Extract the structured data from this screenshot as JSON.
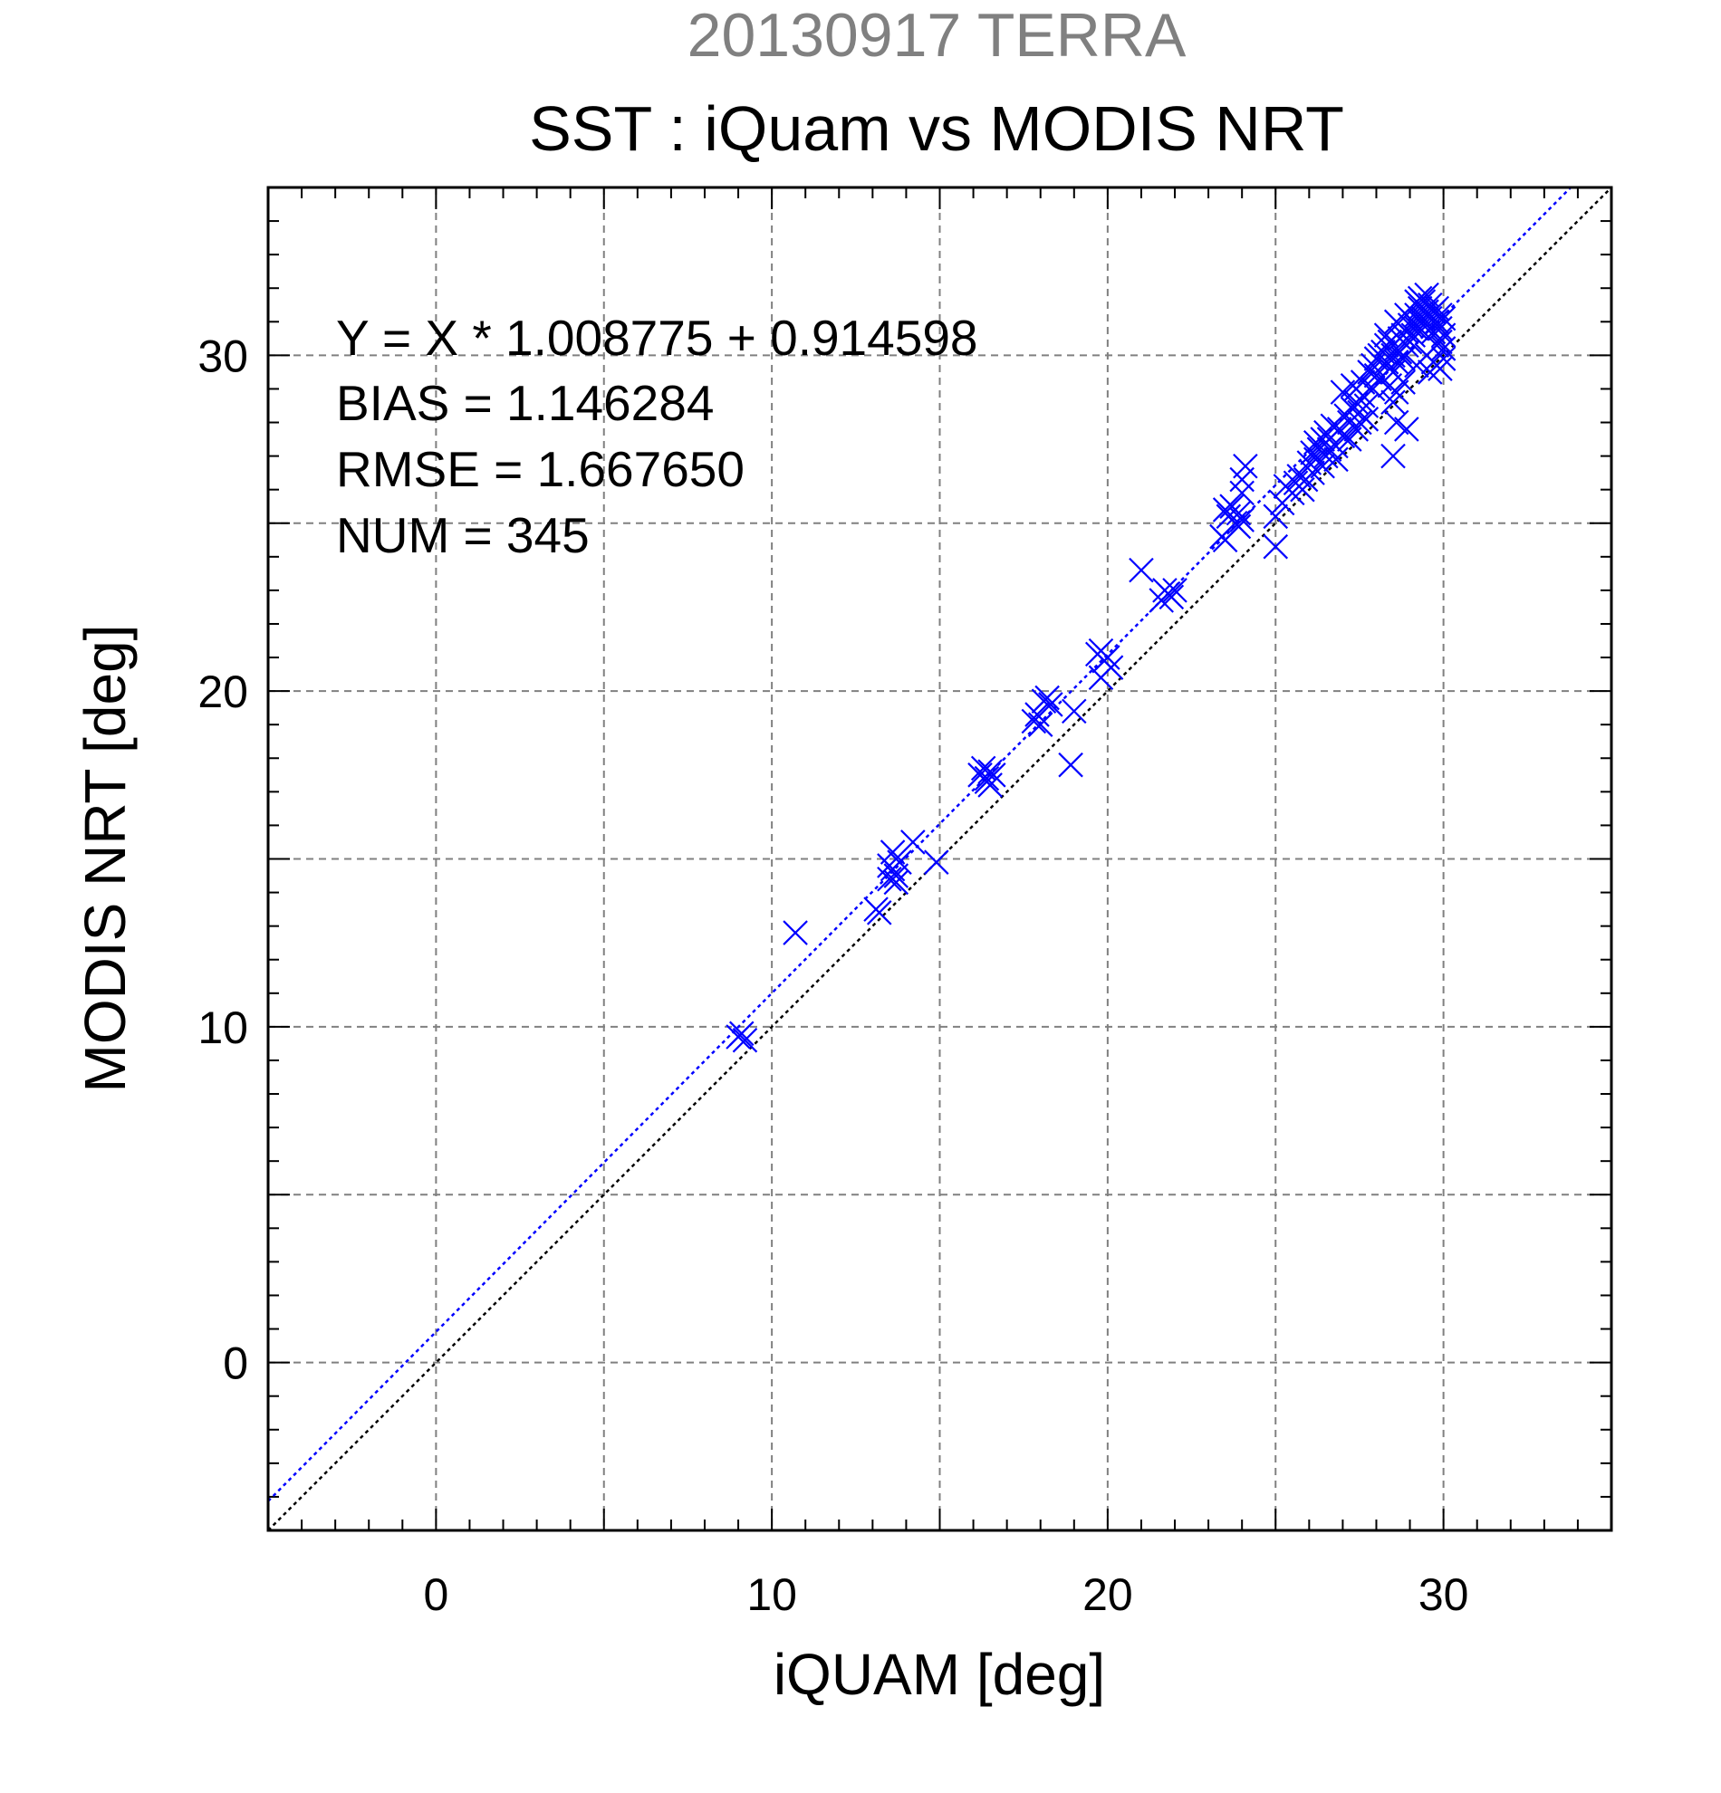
{
  "chart_data": {
    "type": "scatter",
    "subtitle": "20130917 TERRA",
    "title": "SST : iQuam vs MODIS NRT",
    "xlabel": "iQUAM [deg]",
    "ylabel": "MODIS NRT [deg]",
    "xlim": [
      -5,
      35
    ],
    "ylim": [
      -5,
      35
    ],
    "xticks": [
      0,
      10,
      20,
      30
    ],
    "yticks": [
      0,
      10,
      20,
      30
    ],
    "minor_step": 1,
    "grid": true,
    "grid_step": 5,
    "annotations": [
      "Y = X * 1.008775 + 0.914598",
      "BIAS = 1.146284",
      "RMSE = 1.667650",
      "NUM = 345"
    ],
    "fit_line": {
      "slope": 1.008775,
      "intercept": 0.914598,
      "color": "#0000ff",
      "style": "dotted"
    },
    "identity_line": {
      "slope": 1,
      "intercept": 0,
      "color": "#000000",
      "style": "dotted"
    },
    "series": [
      {
        "marker": "x",
        "color": "#0000ff",
        "points": [
          [
            9.1,
            9.8
          ],
          [
            9.2,
            9.6
          ],
          [
            9.0,
            9.7
          ],
          [
            10.7,
            12.8
          ],
          [
            13.1,
            13.5
          ],
          [
            13.2,
            13.4
          ],
          [
            13.5,
            14.4
          ],
          [
            13.6,
            14.7
          ],
          [
            13.7,
            14.5
          ],
          [
            13.6,
            15.2
          ],
          [
            13.8,
            14.9
          ],
          [
            13.5,
            14.8
          ],
          [
            13.7,
            14.3
          ],
          [
            14.2,
            15.5
          ],
          [
            14.9,
            14.9
          ],
          [
            16.2,
            17.5
          ],
          [
            16.3,
            17.7
          ],
          [
            16.4,
            17.3
          ],
          [
            16.5,
            17.6
          ],
          [
            16.4,
            17.4
          ],
          [
            16.6,
            17.5
          ],
          [
            16.5,
            17.2
          ],
          [
            17.8,
            19.1
          ],
          [
            17.9,
            19.3
          ],
          [
            18.0,
            19.0
          ],
          [
            18.1,
            19.7
          ],
          [
            18.2,
            19.8
          ],
          [
            18.3,
            19.6
          ],
          [
            18.9,
            17.8
          ],
          [
            19.0,
            19.4
          ],
          [
            19.7,
            21.1
          ],
          [
            19.8,
            21.2
          ],
          [
            19.9,
            20.9
          ],
          [
            20.0,
            21.0
          ],
          [
            19.8,
            20.4
          ],
          [
            20.1,
            20.7
          ],
          [
            21.0,
            23.6
          ],
          [
            21.6,
            22.7
          ],
          [
            21.8,
            22.9
          ],
          [
            22.0,
            23.0
          ],
          [
            21.7,
            23.0
          ],
          [
            21.9,
            22.8
          ],
          [
            23.4,
            24.6
          ],
          [
            23.5,
            24.5
          ],
          [
            23.5,
            25.4
          ],
          [
            23.6,
            25.2
          ],
          [
            23.7,
            25.5
          ],
          [
            23.8,
            25.0
          ],
          [
            23.9,
            25.3
          ],
          [
            24.0,
            25.1
          ],
          [
            23.9,
            24.9
          ],
          [
            24.0,
            26.3
          ],
          [
            24.1,
            26.7
          ],
          [
            24.0,
            25.9
          ],
          [
            25.0,
            24.3
          ],
          [
            25.0,
            25.2
          ],
          [
            25.2,
            25.6
          ],
          [
            25.3,
            26.1
          ],
          [
            25.5,
            25.9
          ],
          [
            25.6,
            26.2
          ],
          [
            25.8,
            26.0
          ],
          [
            25.7,
            26.4
          ],
          [
            25.9,
            26.3
          ],
          [
            26.0,
            26.8
          ],
          [
            26.1,
            27.1
          ],
          [
            26.2,
            26.9
          ],
          [
            26.2,
            27.4
          ],
          [
            26.3,
            27.2
          ],
          [
            26.4,
            27.5
          ],
          [
            26.5,
            27.0
          ],
          [
            26.5,
            27.7
          ],
          [
            26.6,
            27.5
          ],
          [
            26.7,
            27.9
          ],
          [
            26.8,
            27.3
          ],
          [
            26.9,
            27.8
          ],
          [
            27.0,
            27.6
          ],
          [
            26.6,
            27.2
          ],
          [
            27.1,
            28.2
          ],
          [
            27.2,
            28.0
          ],
          [
            27.3,
            28.4
          ],
          [
            27.4,
            28.6
          ],
          [
            27.5,
            28.3
          ],
          [
            27.4,
            29.0
          ],
          [
            27.6,
            28.8
          ],
          [
            27.0,
            28.9
          ],
          [
            27.3,
            29.1
          ],
          [
            27.6,
            29.2
          ],
          [
            27.7,
            28.5
          ],
          [
            27.5,
            28.0
          ],
          [
            27.8,
            29.5
          ],
          [
            27.9,
            29.7
          ],
          [
            28.0,
            29.9
          ],
          [
            28.0,
            29.4
          ],
          [
            28.1,
            30.0
          ],
          [
            28.1,
            29.3
          ],
          [
            27.9,
            29.0
          ],
          [
            28.2,
            30.1
          ],
          [
            28.3,
            29.8
          ],
          [
            28.3,
            30.3
          ],
          [
            28.4,
            29.6
          ],
          [
            28.4,
            30.4
          ],
          [
            28.5,
            30.0
          ],
          [
            28.5,
            29.5
          ],
          [
            28.6,
            30.2
          ],
          [
            28.6,
            29.8
          ],
          [
            28.7,
            30.5
          ],
          [
            28.7,
            30.1
          ],
          [
            28.8,
            29.9
          ],
          [
            28.8,
            30.6
          ],
          [
            28.9,
            30.3
          ],
          [
            28.9,
            30.7
          ],
          [
            29.0,
            30.4
          ],
          [
            29.0,
            30.9
          ],
          [
            29.1,
            30.6
          ],
          [
            29.1,
            31.0
          ],
          [
            29.2,
            30.8
          ],
          [
            29.2,
            31.2
          ],
          [
            29.3,
            31.0
          ],
          [
            29.3,
            31.4
          ],
          [
            29.4,
            31.1
          ],
          [
            29.4,
            31.6
          ],
          [
            29.5,
            31.3
          ],
          [
            29.5,
            30.9
          ],
          [
            29.6,
            31.5
          ],
          [
            29.6,
            31.1
          ],
          [
            29.7,
            31.3
          ],
          [
            29.7,
            30.7
          ],
          [
            29.8,
            31.0
          ],
          [
            29.8,
            31.4
          ],
          [
            29.9,
            30.8
          ],
          [
            29.9,
            31.2
          ],
          [
            30.0,
            30.6
          ],
          [
            30.0,
            31.1
          ],
          [
            29.9,
            30.4
          ],
          [
            30.0,
            30.2
          ],
          [
            29.8,
            30.3
          ],
          [
            28.3,
            30.6
          ],
          [
            28.6,
            31.0
          ],
          [
            28.9,
            31.2
          ],
          [
            29.2,
            31.6
          ],
          [
            29.5,
            31.8
          ],
          [
            29.3,
            31.7
          ],
          [
            29.5,
            30.0
          ],
          [
            29.7,
            29.8
          ],
          [
            29.9,
            29.6
          ],
          [
            30.0,
            29.9
          ],
          [
            29.6,
            29.5
          ],
          [
            29.2,
            29.7
          ],
          [
            28.4,
            29.1
          ],
          [
            28.6,
            28.9
          ],
          [
            28.5,
            28.6
          ],
          [
            28.8,
            29.2
          ],
          [
            28.6,
            28.0
          ],
          [
            28.9,
            27.8
          ],
          [
            28.5,
            27.0
          ],
          [
            27.7,
            28.1
          ],
          [
            27.4,
            27.8
          ],
          [
            27.2,
            27.5
          ],
          [
            26.8,
            26.9
          ],
          [
            26.4,
            26.7
          ],
          [
            26.1,
            26.5
          ]
        ]
      }
    ]
  }
}
